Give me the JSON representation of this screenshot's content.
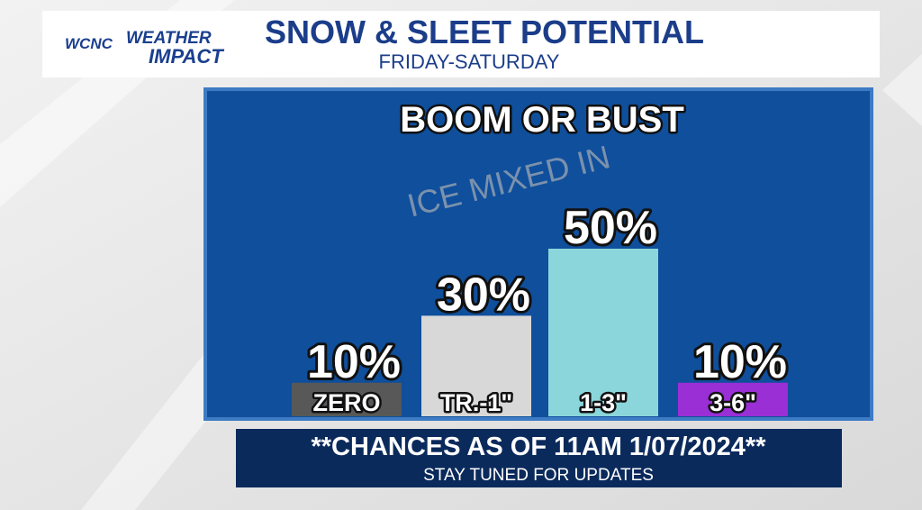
{
  "header": {
    "station": "WCNC",
    "brand1": "WEATHER",
    "brand2": "IMPACT",
    "title": "SNOW & SLEET POTENTIAL",
    "subtitle": "FRIDAY-SATURDAY"
  },
  "chart_data": {
    "type": "bar",
    "title": "BOOM OR BUST",
    "annotation": "ICE MIXED IN",
    "categories": [
      "ZERO",
      "TR.-1\"",
      "1-3\"",
      "3-6\""
    ],
    "values": [
      10,
      30,
      50,
      10
    ],
    "value_labels": [
      "10%",
      "30%",
      "50%",
      "10%"
    ],
    "colors": [
      "#585858",
      "#d8d8d8",
      "#8ad6da",
      "#9a2fd6"
    ]
  },
  "footer": {
    "headline": "**CHANCES AS OF 11AM 1/07/2024**",
    "note": "STAY TUNED FOR UPDATES"
  }
}
